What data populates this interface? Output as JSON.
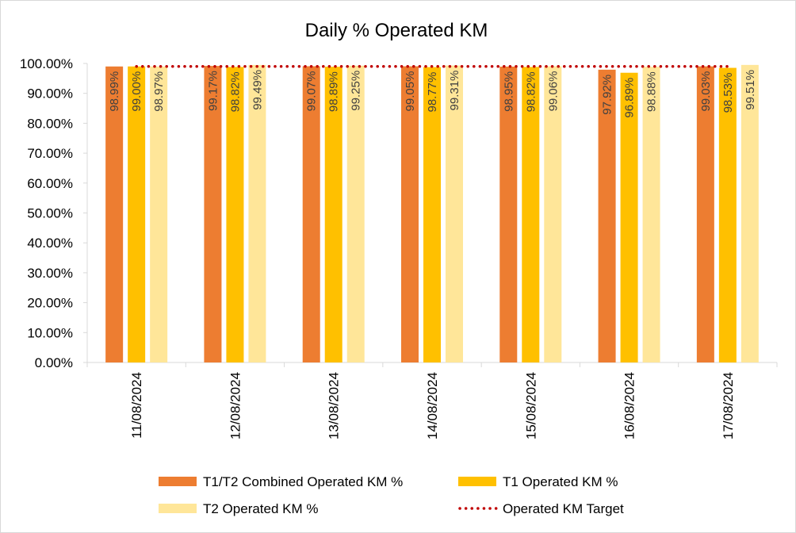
{
  "chart_data": {
    "type": "bar",
    "title": "Daily % Operated KM",
    "categories": [
      "11/08/2024",
      "12/08/2024",
      "13/08/2024",
      "14/08/2024",
      "15/08/2024",
      "16/08/2024",
      "17/08/2024"
    ],
    "series": [
      {
        "name": "T1/T2 Combined Operated KM %",
        "color": "#ED7D31",
        "values": [
          98.99,
          99.17,
          99.07,
          99.05,
          98.95,
          97.92,
          99.03
        ],
        "labels": [
          "98.99%",
          "99.17%",
          "99.07%",
          "99.05%",
          "98.95%",
          "97.92%",
          "99.03%"
        ]
      },
      {
        "name": "T1 Operated KM %",
        "color": "#FFC000",
        "values": [
          99.0,
          98.82,
          98.89,
          98.77,
          98.82,
          96.89,
          98.53
        ],
        "labels": [
          "99.00%",
          "98.82%",
          "98.89%",
          "98.77%",
          "98.82%",
          "96.89%",
          "98.53%"
        ]
      },
      {
        "name": "T2 Operated KM %",
        "color": "#FFE699",
        "values": [
          98.97,
          99.49,
          99.25,
          99.31,
          99.06,
          98.88,
          99.51
        ],
        "labels": [
          "98.97%",
          "99.49%",
          "99.25%",
          "99.31%",
          "99.06%",
          "98.88%",
          "99.51%"
        ]
      }
    ],
    "target": {
      "name": "Operated KM Target",
      "color": "#C00000",
      "value": 99
    },
    "yaxis": {
      "min": 0,
      "max": 100,
      "step": 10,
      "ticks": [
        "0.00%",
        "10.00%",
        "20.00%",
        "30.00%",
        "40.00%",
        "50.00%",
        "60.00%",
        "70.00%",
        "80.00%",
        "90.00%",
        "100.00%"
      ]
    },
    "legend_position": "bottom",
    "grid": false
  }
}
